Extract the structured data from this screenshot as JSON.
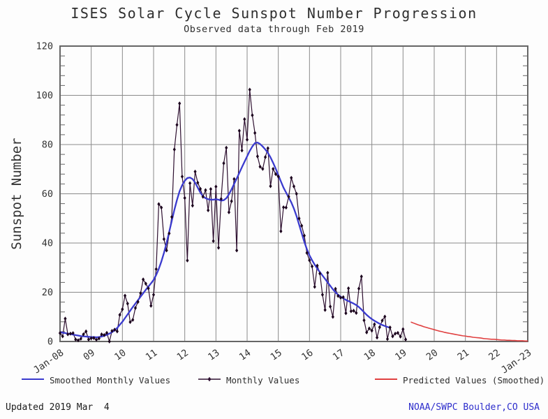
{
  "title": "ISES Solar Cycle Sunspot Number Progression",
  "subtitle": "Observed data through Feb 2019",
  "footer": {
    "updated": "Updated 2019 Mar  4",
    "source": "NOAA/SWPC Boulder,CO USA"
  },
  "colors": {
    "smoothed": "#3a3ace",
    "monthly": "#2e1030",
    "marker": "#1a021c",
    "predicted": "#e04040",
    "grid": "#8a8a8a",
    "frame": "#666666",
    "source_text": "#2d2dcc"
  },
  "legend": [
    {
      "label": "Smoothed Monthly Values",
      "color": "#3a3ace",
      "marker": "line"
    },
    {
      "label": "Monthly Values",
      "color": "#2e1030",
      "marker": "line-dot"
    },
    {
      "label": "Predicted Values (Smoothed)",
      "color": "#e04040",
      "marker": "line"
    }
  ],
  "chart_data": {
    "type": "line",
    "title": "ISES Solar Cycle Sunspot Number Progression",
    "subtitle": "Observed data through Feb 2019",
    "xlabel": "",
    "ylabel": "Sunspot Number",
    "ylim": [
      0,
      120
    ],
    "y_major_step": 20,
    "y_minor_step": 4,
    "x_years": 15,
    "x_start": "2008-01",
    "x_end": "2023-01",
    "x_tick_labels": [
      "Jan-08",
      "09",
      "10",
      "11",
      "12",
      "13",
      "14",
      "15",
      "16",
      "17",
      "18",
      "19",
      "20",
      "21",
      "22",
      "Jan-23"
    ],
    "grid": true,
    "legend_position": "bottom",
    "series": [
      {
        "name": "Monthly Values",
        "start": "2008-01",
        "start_index": 0,
        "markers": true,
        "values": [
          3.4,
          2.1,
          9.3,
          2.9,
          3.2,
          3.4,
          0.8,
          0.5,
          1.1,
          2.9,
          4.1,
          0.8,
          1.3,
          1.4,
          0.7,
          1.2,
          2.9,
          2.6,
          3.5,
          0.0,
          4.3,
          4.8,
          4.1,
          10.8,
          13.1,
          18.6,
          15.4,
          7.9,
          8.8,
          13.6,
          16.1,
          19.6,
          25.2,
          23.5,
          21.6,
          14.5,
          19.0,
          29.4,
          55.8,
          54.4,
          41.6,
          37.0,
          43.9,
          50.6,
          78.0,
          88.0,
          96.7,
          67.0,
          58.3,
          32.9,
          64.3,
          55.2,
          69.0,
          64.5,
          62.0,
          58.8,
          61.5,
          53.3,
          61.9,
          40.8,
          62.9,
          38.1,
          57.9,
          72.4,
          78.7,
          52.5,
          57.0,
          66.0,
          37.0,
          85.6,
          77.6,
          90.3,
          82.0,
          102.3,
          91.9,
          84.7,
          75.2,
          71.0,
          70.1,
          74.9,
          78.5,
          63.1,
          70.1,
          68.0,
          67.0,
          44.8,
          54.5,
          54.4,
          58.8,
          66.5,
          63.0,
          60.0,
          50.0,
          47.0,
          43.0,
          36.0,
          33.0,
          30.5,
          22.2,
          30.8,
          27.6,
          19.0,
          12.8,
          27.9,
          14.2,
          10.0,
          21.4,
          18.5,
          17.8,
          18.0,
          11.5,
          21.6,
          12.3,
          12.5,
          11.6,
          21.5,
          26.4,
          8.6,
          3.7,
          5.3,
          4.4,
          7.0,
          1.6,
          5.8,
          8.5,
          10.1,
          1.0,
          5.7,
          2.1,
          3.2,
          3.5,
          2.0,
          5.0,
          0.8
        ]
      },
      {
        "name": "Smoothed Monthly Values",
        "start": "2008-01",
        "start_index": 0,
        "markers": false,
        "values": [
          3.8,
          3.6,
          3.4,
          3.2,
          3.0,
          2.8,
          2.6,
          2.4,
          2.2,
          2.1,
          2.0,
          1.9,
          1.8,
          1.8,
          1.7,
          1.8,
          2.0,
          2.3,
          2.7,
          3.2,
          3.8,
          4.5,
          5.5,
          6.8,
          8.0,
          9.5,
          11.0,
          12.5,
          14.0,
          15.4,
          16.8,
          18.2,
          19.6,
          21.0,
          22.3,
          23.6,
          25.0,
          27.0,
          29.5,
          32.5,
          36.0,
          40.0,
          44.5,
          49.0,
          53.5,
          57.5,
          61.0,
          63.5,
          65.3,
          66.4,
          66.6,
          66.0,
          64.5,
          62.5,
          60.5,
          59.0,
          58.2,
          57.8,
          57.6,
          57.6,
          57.8,
          57.6,
          57.2,
          57.4,
          58.2,
          59.8,
          61.8,
          64.0,
          66.2,
          68.5,
          70.8,
          73.0,
          75.2,
          77.4,
          79.2,
          80.6,
          80.8,
          80.2,
          79.2,
          78.0,
          76.6,
          74.8,
          72.6,
          70.2,
          67.6,
          65.0,
          62.5,
          60.5,
          58.5,
          56.5,
          54.0,
          51.0,
          47.5,
          44.0,
          40.5,
          37.5,
          35.0,
          33.0,
          31.2,
          29.6,
          28.2,
          26.8,
          25.4,
          24.0,
          22.6,
          21.2,
          20.0,
          19.0,
          18.2,
          17.5,
          16.9,
          16.4,
          15.9,
          15.4,
          14.8,
          14.0,
          13.0,
          11.9,
          10.8,
          9.9,
          9.1,
          8.4,
          7.8,
          7.2,
          6.7,
          6.3,
          5.9,
          5.6
        ]
      },
      {
        "name": "Predicted Values (Smoothed)",
        "start": "2019-04",
        "start_index": 135,
        "markers": false,
        "values": [
          7.9,
          7.5,
          7.1,
          6.7,
          6.4,
          6.0,
          5.7,
          5.4,
          5.1,
          4.8,
          4.5,
          4.2,
          4.0,
          3.7,
          3.5,
          3.3,
          3.1,
          2.9,
          2.7,
          2.5,
          2.3,
          2.2,
          2.0,
          1.9,
          1.7,
          1.6,
          1.5,
          1.4,
          1.2,
          1.1,
          1.0,
          0.9,
          0.9,
          0.8,
          0.7,
          0.6,
          0.6,
          0.5,
          0.5,
          0.4,
          0.4,
          0.3,
          0.3,
          0.3,
          0.2,
          0.2
        ]
      }
    ]
  }
}
